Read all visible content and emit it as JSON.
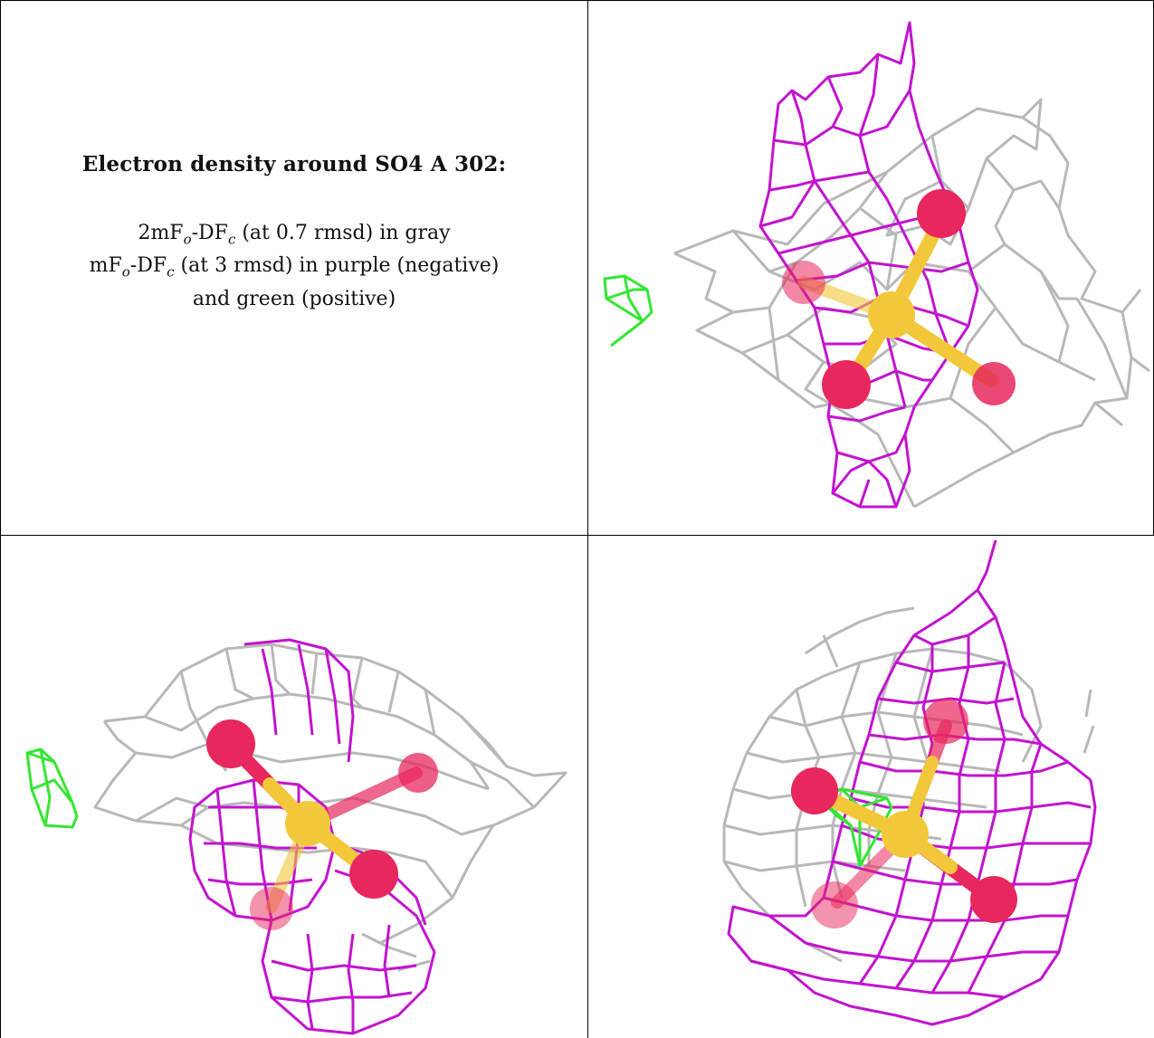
{
  "caption": {
    "title": "Electron density around SO4 A 302:",
    "line1": {
      "prefix": "2mF",
      "sub1": "o",
      "mid": "-DF",
      "sub2": "c",
      "suffix": " (at 0.7 rmsd) in gray"
    },
    "line2": {
      "prefix": "mF",
      "sub1": "o",
      "mid": "-DF",
      "sub2": "c",
      "suffix": " (at 3 rmsd) in purple (negative)"
    },
    "line3": "and green (positive)"
  },
  "colors": {
    "gray_mesh": "#b8b8b8",
    "purple_mesh": "#c213cf",
    "green_mesh": "#33e633",
    "oxygen": "#e8275c",
    "sulfur": "#f2c83a",
    "border": "#000000"
  },
  "views": [
    {
      "id": "view-top-right",
      "label": "density-view-1"
    },
    {
      "id": "view-bottom-left",
      "label": "density-view-2"
    },
    {
      "id": "view-bottom-right",
      "label": "density-view-3"
    }
  ]
}
